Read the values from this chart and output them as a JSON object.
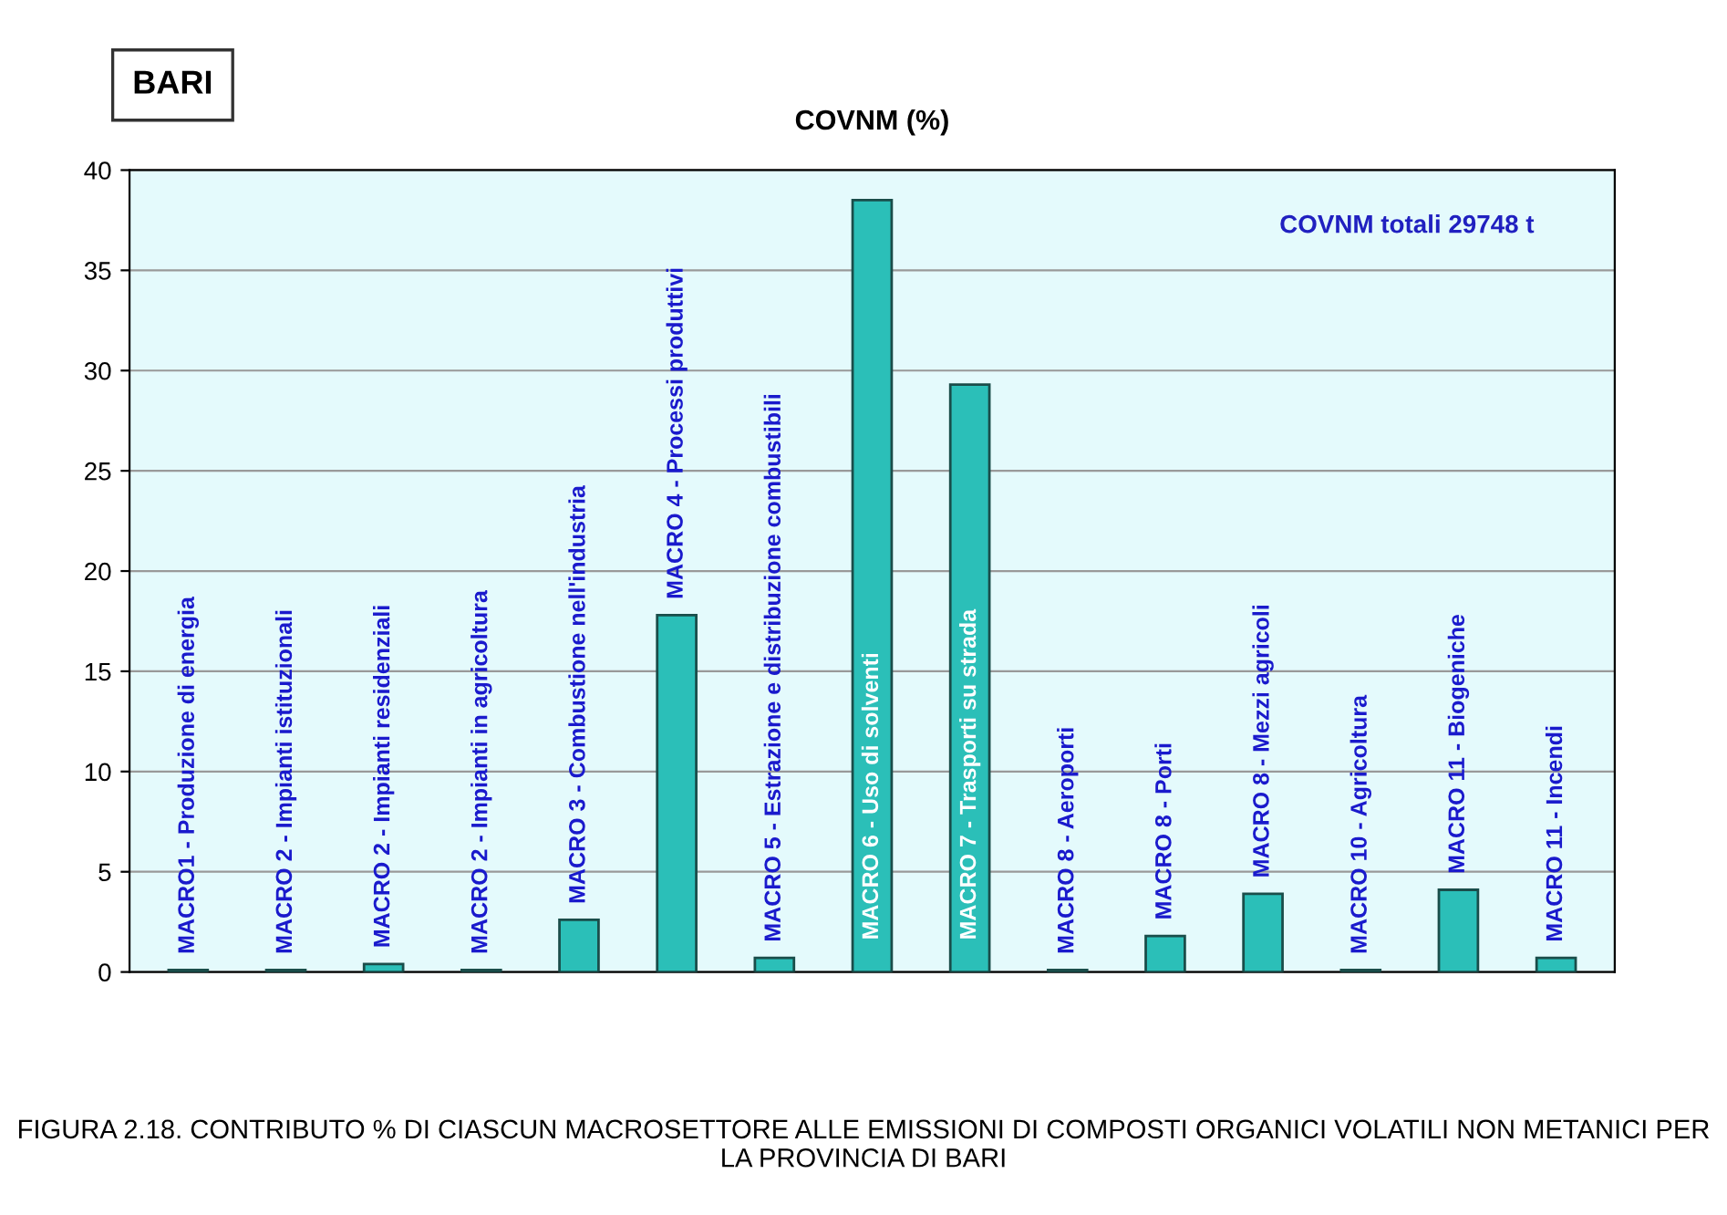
{
  "chart_data": {
    "type": "bar",
    "title": "COVNM (%)",
    "categories": [
      "MACRO1 - Produzione di energia",
      "MACRO 2 - Impianti istituzionali",
      "MACRO 2 - Impianti residenziali",
      "MACRO 2 - Impianti in agricoltura",
      "MACRO 3 - Combustione nell'industria",
      "MACRO 4 - Processi produttivi",
      "MACRO 5 - Estrazione e distribuzione combustibili",
      "MACRO 6 - Uso di solventi",
      "MACRO 7 - Trasporti su strada",
      "MACRO 8 - Aeroporti",
      "MACRO 8 - Porti",
      "MACRO 8 - Mezzi agricoli",
      "MACRO 10 - Agricoltura",
      "MACRO 11 - Biogeniche",
      "MACRO 11 - Incendi"
    ],
    "values": [
      0.1,
      0.1,
      0.4,
      0.1,
      2.6,
      17.8,
      0.7,
      38.5,
      29.3,
      0.1,
      1.8,
      3.9,
      0.1,
      4.1,
      0.7
    ],
    "color": "#2bbfb8",
    "ylim": [
      0,
      40
    ],
    "yticks": [
      0,
      5,
      10,
      15,
      20,
      25,
      30,
      35,
      40
    ],
    "grid": "y",
    "annotations": [
      "BARI",
      "COVNM totali 29748 t",
      "FIGURA 2.18. CONTRIBUTO % DI CIASCUN MACROSETTORE ALLE EMISSIONI DI COMPOSTI ORGANICI VOLATILI NON METANICI PER LA PROVINCIA DI BARI"
    ]
  }
}
